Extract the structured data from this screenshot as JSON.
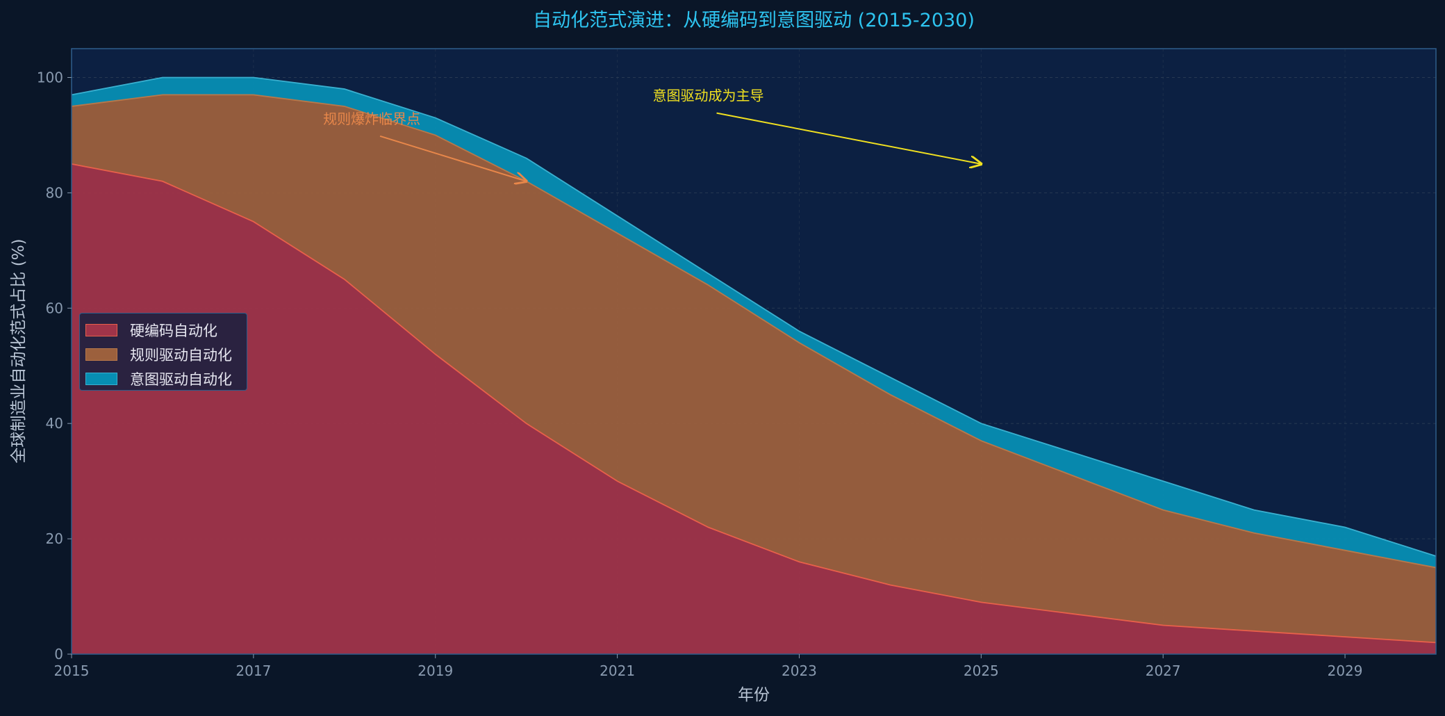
{
  "chart_data": {
    "type": "area",
    "stacked": true,
    "title": "自动化范式演进：从硬编码到意图驱动 (2015-2030)",
    "xlabel": "年份",
    "ylabel": "全球制造业自动化范式占比 (%)",
    "x": [
      2015,
      2016,
      2017,
      2018,
      2019,
      2020,
      2021,
      2022,
      2023,
      2024,
      2025,
      2026,
      2027,
      2028,
      2029,
      2030
    ],
    "xlim": [
      2015,
      2030
    ],
    "ylim": [
      0,
      105
    ],
    "xticks": [
      2015,
      2017,
      2019,
      2021,
      2023,
      2025,
      2027,
      2029
    ],
    "yticks": [
      0,
      20,
      40,
      60,
      80,
      100
    ],
    "grid": true,
    "legend_position": "center-left",
    "series": [
      {
        "name": "硬编码自动化",
        "color": "#a03449",
        "line_color": "#e8604a",
        "values": [
          85,
          82,
          75,
          65,
          52,
          40,
          30,
          22,
          16,
          12,
          9,
          7,
          5,
          4,
          3,
          2
        ]
      },
      {
        "name": "规则驱动自动化",
        "color": "#9c603d",
        "line_color": "#b8784a",
        "values": [
          10,
          15,
          22,
          30,
          38,
          42,
          43,
          42,
          38,
          33,
          28,
          24,
          20,
          17,
          15,
          13
        ]
      },
      {
        "name": "意图驱动自动化",
        "color": "#078eb3",
        "line_color": "#3ab0d0",
        "values": [
          2,
          3,
          3,
          3,
          3,
          4,
          3,
          2,
          2,
          3,
          3,
          4,
          5,
          4,
          4,
          2
        ]
      }
    ],
    "annotations": [
      {
        "text": "规则爆炸临界点",
        "color": "#e8874a",
        "xy": [
          2020,
          82
        ],
        "xytext": [
          2018.3,
          92
        ]
      },
      {
        "text": "意图驱动成为主导",
        "color": "#f0e020",
        "xy": [
          2025,
          85
        ],
        "xytext": [
          2022,
          96
        ]
      }
    ]
  },
  "colors": {
    "background": "#0a1628",
    "plot_background": "#0c2042",
    "title": "#2ec4f0",
    "axis_text": "#8a9bb0",
    "axis_label": "#b8c4d4",
    "frame": "#2e5d8a"
  }
}
